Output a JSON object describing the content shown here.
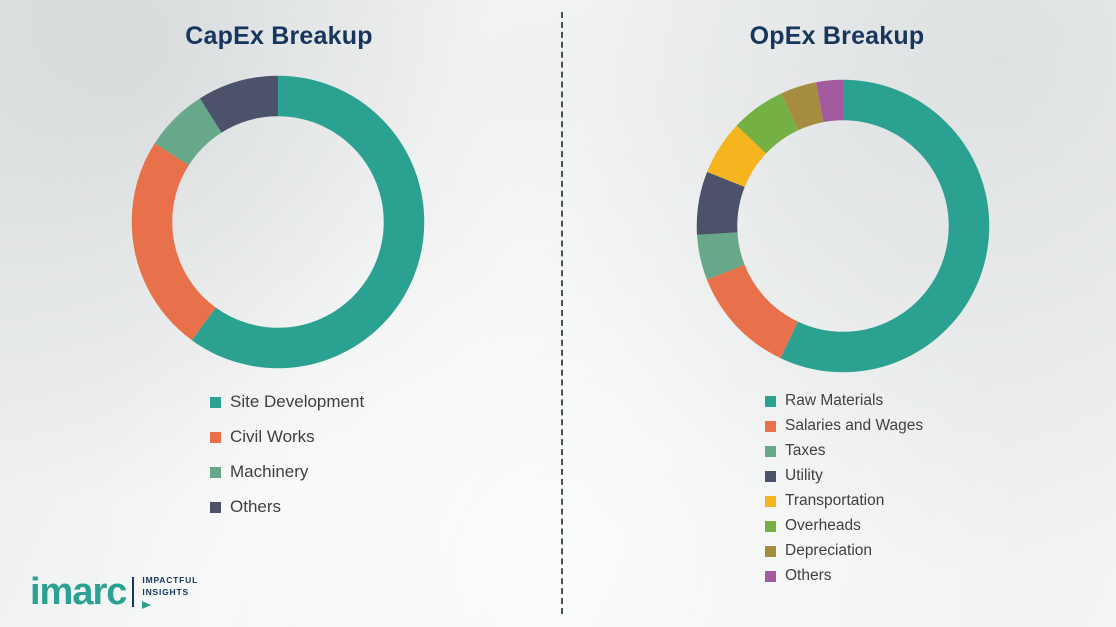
{
  "theme": {
    "title_color": "#17365d",
    "legend_text_color": "#3f3f3f",
    "brand_color": "#2aa191",
    "divider_color": "#4a4f55"
  },
  "chart_data": [
    {
      "type": "pie",
      "subtype": "donut",
      "title": "CapEx Breakup",
      "units": "percent (estimated, no data labels shown)",
      "labels": [
        "Site Development",
        "Civil Works",
        "Machinery",
        "Others"
      ],
      "values": [
        60,
        24,
        7,
        9
      ],
      "colors": [
        "#2aa191",
        "#e8714b",
        "#68a88a",
        "#4b5269"
      ],
      "legend_position": "bottom",
      "start_angle": "top",
      "direction": "clockwise"
    },
    {
      "type": "pie",
      "subtype": "donut",
      "title": "OpEx Breakup",
      "units": "percent (estimated, no data labels shown)",
      "labels": [
        "Raw Materials",
        "Salaries and Wages",
        "Taxes",
        "Utility",
        "Transportation",
        "Overheads",
        "Depreciation",
        "Others"
      ],
      "values": [
        57,
        12,
        5,
        7,
        6,
        6,
        4,
        3
      ],
      "colors": [
        "#2aa191",
        "#e8714b",
        "#68a88a",
        "#4b5269",
        "#f6b51e",
        "#74b044",
        "#a68c40",
        "#a35ba0"
      ],
      "legend_position": "bottom",
      "start_angle": "top",
      "direction": "clockwise"
    }
  ],
  "logo": {
    "brand": "imarc",
    "tagline_line1": "IMPACTFUL",
    "tagline_line2": "INSIGHTS"
  }
}
